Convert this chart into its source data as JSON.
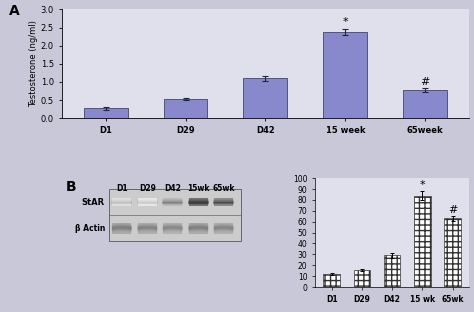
{
  "panel_A": {
    "categories": [
      "D1",
      "D29",
      "D42",
      "15 week",
      "65week"
    ],
    "values": [
      0.27,
      0.52,
      1.1,
      2.37,
      0.78
    ],
    "errors": [
      0.04,
      0.03,
      0.06,
      0.08,
      0.05
    ],
    "bar_color": "#8888cc",
    "ylabel": "Testosterone (ng/ml)",
    "ylim": [
      0,
      3
    ],
    "yticks": [
      0,
      0.5,
      1.0,
      1.5,
      2.0,
      2.5,
      3.0
    ],
    "panel_label": "A",
    "star_idx": 3,
    "hash_idx": 4
  },
  "panel_B_bar": {
    "categories": [
      "D1",
      "D29",
      "D42",
      "15 wk",
      "65wk"
    ],
    "values": [
      12,
      16,
      29,
      84,
      63
    ],
    "errors": [
      1.0,
      1.0,
      2.0,
      4.0,
      2.5
    ],
    "ylim": [
      0,
      100
    ],
    "yticks": [
      0,
      10,
      20,
      30,
      40,
      50,
      60,
      70,
      80,
      90,
      100
    ],
    "hatch": "++",
    "star_idx": 3,
    "hash_idx": 4
  },
  "blot": {
    "col_labels": [
      "D1",
      "D29",
      "D42",
      "15wk",
      "65wk"
    ],
    "star_intensities": [
      0.15,
      0.12,
      0.35,
      0.72,
      0.58
    ],
    "actin_intensities": [
      0.55,
      0.52,
      0.5,
      0.54,
      0.51
    ],
    "star_label": "StAR",
    "actin_label": "β Actin",
    "panel_label": "B"
  },
  "background_color": "#c8c8d8",
  "axes_bg": "#e0e0ec"
}
